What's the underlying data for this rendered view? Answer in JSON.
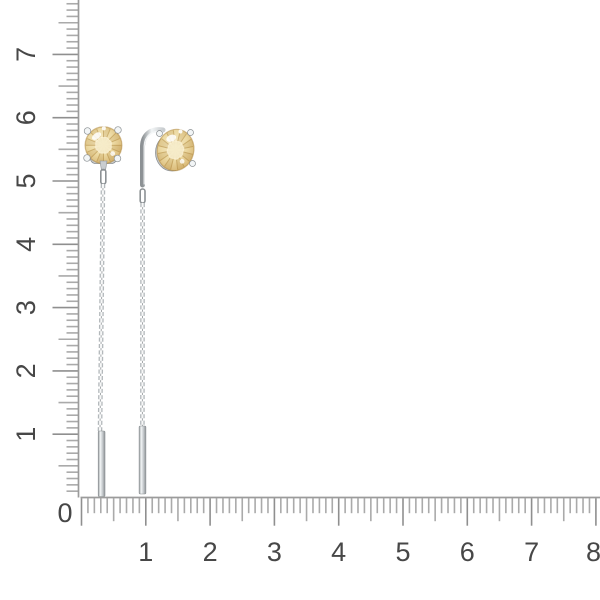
{
  "rulers": {
    "origin_label": "0",
    "vertical": {
      "numbers": [
        "1",
        "2",
        "3",
        "4",
        "5",
        "6",
        "7"
      ]
    },
    "horizontal": {
      "numbers": [
        "1",
        "2",
        "3",
        "4",
        "5",
        "6",
        "7",
        "8"
      ]
    }
  },
  "colors": {
    "background": "#ffffff",
    "ruler_line": "#9b9b9b",
    "tick_minor": "#aaaaaa",
    "tick_major": "#8f8f8f",
    "number": "#474747",
    "gem_center": "#f7edcb",
    "gem_mid": "#ecd9a2",
    "gem_edge": "#cda55c",
    "gem_facet": "#a97f33",
    "metal_light": "#f2f5f6",
    "metal_mid": "#c9cdd0",
    "metal_dark": "#8c9194",
    "chain": "#b3b8bb"
  }
}
